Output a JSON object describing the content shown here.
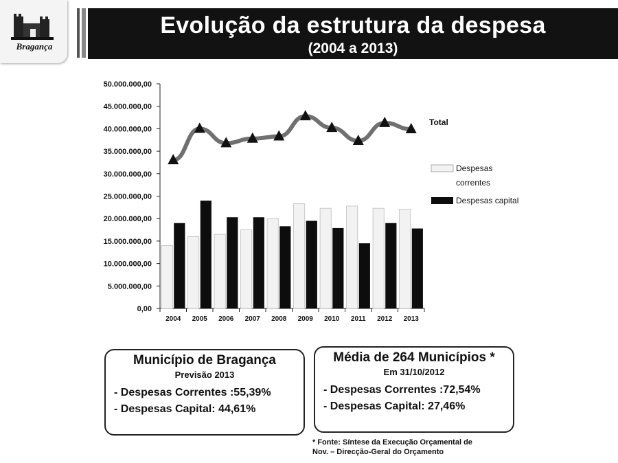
{
  "logo": {
    "icon": "castle-icon",
    "text": "Bragança"
  },
  "header": {
    "title": "Evolução da estrutura da despesa",
    "subtitle": "(2004 a 2013)"
  },
  "chart_data": {
    "type": "bar",
    "categories": [
      "2004",
      "2005",
      "2006",
      "2007",
      "2008",
      "2009",
      "2010",
      "2011",
      "2012",
      "2013"
    ],
    "series": [
      {
        "name": "Despesas correntes",
        "type": "bar",
        "color": "#f2f2f2",
        "values": [
          14000000,
          16000000,
          16500000,
          17500000,
          20000000,
          23300000,
          22300000,
          22800000,
          22300000,
          22100000
        ]
      },
      {
        "name": "Despesas capital",
        "type": "bar",
        "color": "#0d0d0d",
        "values": [
          19000000,
          24000000,
          20300000,
          20300000,
          18300000,
          19500000,
          17900000,
          14500000,
          19000000,
          17800000
        ]
      },
      {
        "name": "Total",
        "type": "line",
        "color": "#707070",
        "values": [
          33000000,
          40000000,
          36800000,
          37800000,
          38300000,
          42800000,
          40200000,
          37300000,
          41300000,
          39900000
        ]
      }
    ],
    "ylim": [
      0,
      50000000
    ],
    "yticks": [
      0,
      5000000,
      10000000,
      15000000,
      20000000,
      25000000,
      30000000,
      35000000,
      40000000,
      45000000,
      50000000
    ],
    "ytick_labels": [
      "0,00",
      "5.000.000,00",
      "10.000.000,00",
      "15.000.000,00",
      "20.000.000,00",
      "25.000.000,00",
      "30.000.000,00",
      "35.000.000,00",
      "40.000.000,00",
      "45.000.000,00",
      "50.000.000,00"
    ],
    "legend": [
      "Despesas correntes",
      "Despesas capital"
    ],
    "legend_position": "right",
    "grid": false,
    "xlabel": "",
    "ylabel": ""
  },
  "panels": [
    {
      "title": "Município de Bragança",
      "subtitle": "Previsão 2013",
      "lines": [
        "- Despesas Correntes :55,39%",
        "- Despesas Capital: 44,61%"
      ]
    },
    {
      "title": "Média de 264 Municípios *",
      "subtitle": "Em 31/10/2012",
      "lines": [
        "- Despesas Correntes :72,54%",
        "- Despesas Capital: 27,46%"
      ]
    }
  ],
  "source": {
    "line1": "* Fonte: Síntese  da Execução Orçamental de",
    "line2": "Nov. – Direcção-Geral do Orçamento"
  }
}
